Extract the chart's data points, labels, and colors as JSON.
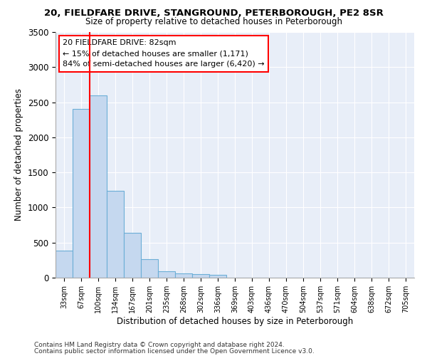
{
  "title_line1": "20, FIELDFARE DRIVE, STANGROUND, PETERBOROUGH, PE2 8SR",
  "title_line2": "Size of property relative to detached houses in Peterborough",
  "xlabel": "Distribution of detached houses by size in Peterborough",
  "ylabel": "Number of detached properties",
  "footer_line1": "Contains HM Land Registry data © Crown copyright and database right 2024.",
  "footer_line2": "Contains public sector information licensed under the Open Government Licence v3.0.",
  "annotation_title": "20 FIELDFARE DRIVE: 82sqm",
  "annotation_line2": "← 15% of detached houses are smaller (1,171)",
  "annotation_line3": "84% of semi-detached houses are larger (6,420) →",
  "categories": [
    "33sqm",
    "67sqm",
    "100sqm",
    "134sqm",
    "167sqm",
    "201sqm",
    "235sqm",
    "268sqm",
    "302sqm",
    "336sqm",
    "369sqm",
    "403sqm",
    "436sqm",
    "470sqm",
    "504sqm",
    "537sqm",
    "571sqm",
    "604sqm",
    "638sqm",
    "672sqm",
    "705sqm"
  ],
  "values": [
    390,
    2400,
    2600,
    1240,
    640,
    260,
    95,
    60,
    55,
    40,
    0,
    0,
    0,
    0,
    0,
    0,
    0,
    0,
    0,
    0,
    0
  ],
  "bar_color": "#c5d8ef",
  "bar_edge_color": "#6baed6",
  "red_line_x": 1.5,
  "ylim": [
    0,
    3500
  ],
  "yticks": [
    0,
    500,
    1000,
    1500,
    2000,
    2500,
    3000,
    3500
  ],
  "background_color": "#e8eef8",
  "property_sqm": 82
}
